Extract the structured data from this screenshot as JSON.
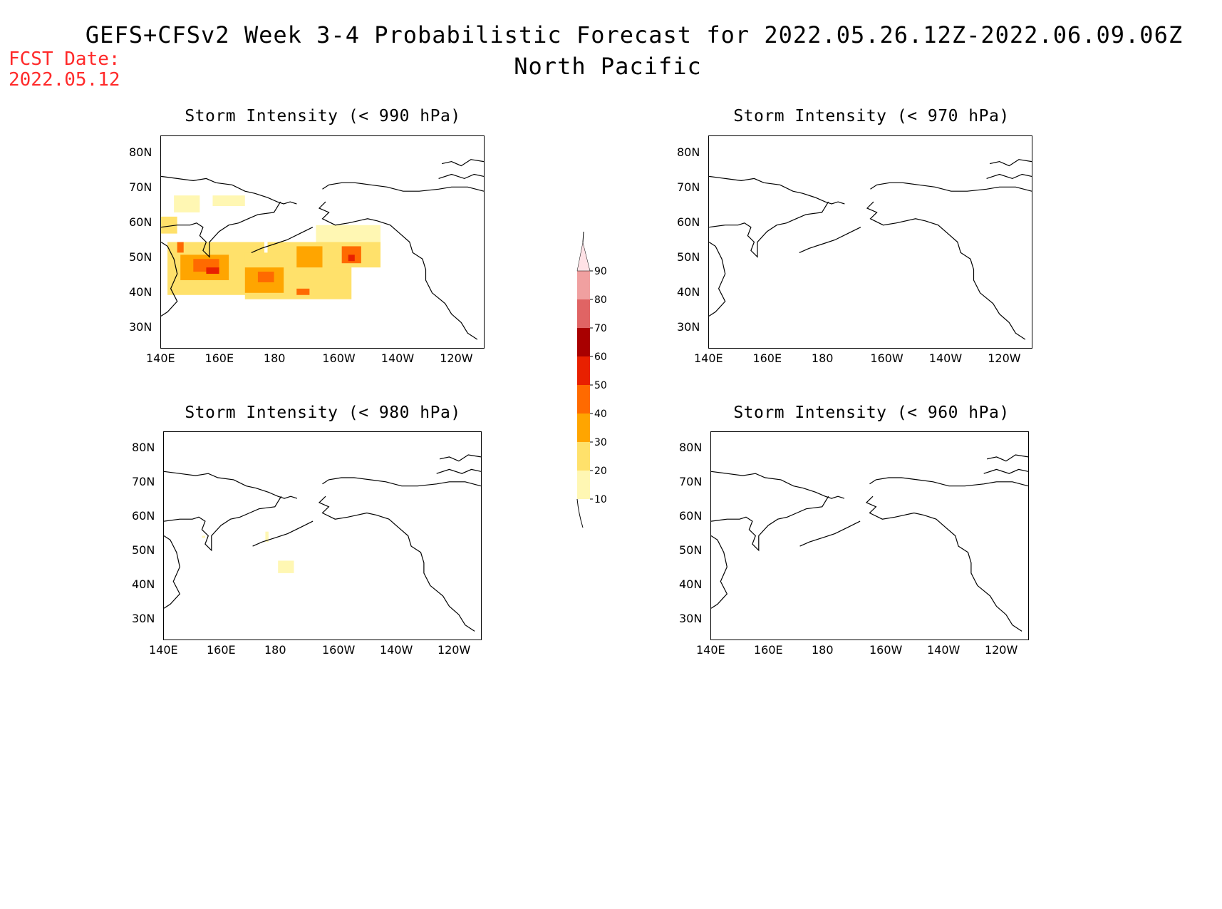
{
  "title": "GEFS+CFSv2 Week 3-4 Probabilistic Forecast for 2022.05.26.12Z-2022.06.09.06Z",
  "subtitle": "North Pacific",
  "fcst_label": "FCST Date:",
  "fcst_date": "2022.05.12",
  "colors": {
    "fcst_text": "#ff2a2a",
    "coast": "#000000"
  },
  "colorbar": {
    "levels": [
      "10",
      "20",
      "30",
      "40",
      "50",
      "60",
      "70",
      "80",
      "90"
    ],
    "colors": [
      "#fff7b3",
      "#ffe16b",
      "#ffa500",
      "#ff6a00",
      "#e82000",
      "#a80000",
      "#e06464",
      "#f0a0a0",
      "#ffe2e6"
    ]
  },
  "panels": [
    {
      "title": "Storm Intensity (< 990 hPa)",
      "lat_labels": [
        "80N",
        "70N",
        "60N",
        "50N",
        "40N",
        "30N"
      ],
      "lon_labels": [
        "140E",
        "160E",
        "180",
        "160W",
        "140W",
        "120W"
      ],
      "has_data": true
    },
    {
      "title": "Storm Intensity (< 970 hPa)",
      "lat_labels": [
        "80N",
        "70N",
        "60N",
        "50N",
        "40N",
        "30N"
      ],
      "lon_labels": [
        "140E",
        "160E",
        "180",
        "160W",
        "140W",
        "120W"
      ],
      "has_data": false
    },
    {
      "title": "Storm Intensity (< 980 hPa)",
      "lat_labels": [
        "80N",
        "70N",
        "60N",
        "50N",
        "40N",
        "30N"
      ],
      "lon_labels": [
        "140E",
        "160E",
        "180",
        "160W",
        "140W",
        "120W"
      ],
      "has_data": true
    },
    {
      "title": "Storm Intensity (< 960 hPa)",
      "lat_labels": [
        "80N",
        "70N",
        "60N",
        "50N",
        "40N",
        "30N"
      ],
      "lon_labels": [
        "140E",
        "160E",
        "180",
        "160W",
        "140W",
        "120W"
      ],
      "has_data": false
    }
  ]
}
